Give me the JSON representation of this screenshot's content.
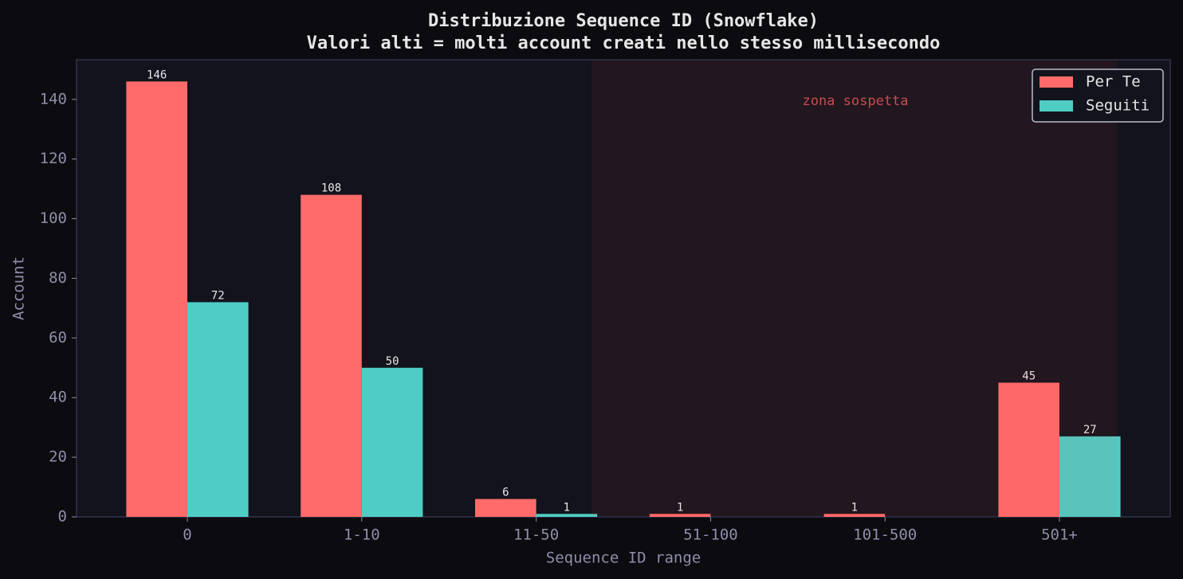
{
  "chart_data": {
    "type": "bar",
    "title": "Distribuzione Sequence ID (Snowflake)",
    "subtitle": "Valori alti = molti account creati nello stesso millisecondo",
    "x_label": "Sequence ID range",
    "y_label": "Account",
    "annotation": "zona sospetta",
    "categories": [
      "0",
      "1-10",
      "11-50",
      "51-100",
      "101-500",
      "501+"
    ],
    "series": [
      {
        "name": "Per Te",
        "color": "#ff6b6b",
        "values": [
          146,
          108,
          6,
          1,
          1,
          45
        ]
      },
      {
        "name": "Seguiti",
        "color": "#4ecdc4",
        "values": [
          72,
          50,
          1,
          0,
          0,
          27
        ]
      }
    ],
    "ylim": [
      0,
      153.3
    ],
    "yticks": [
      0,
      20,
      40,
      60,
      80,
      100,
      120,
      140
    ],
    "legend": "upper right"
  }
}
